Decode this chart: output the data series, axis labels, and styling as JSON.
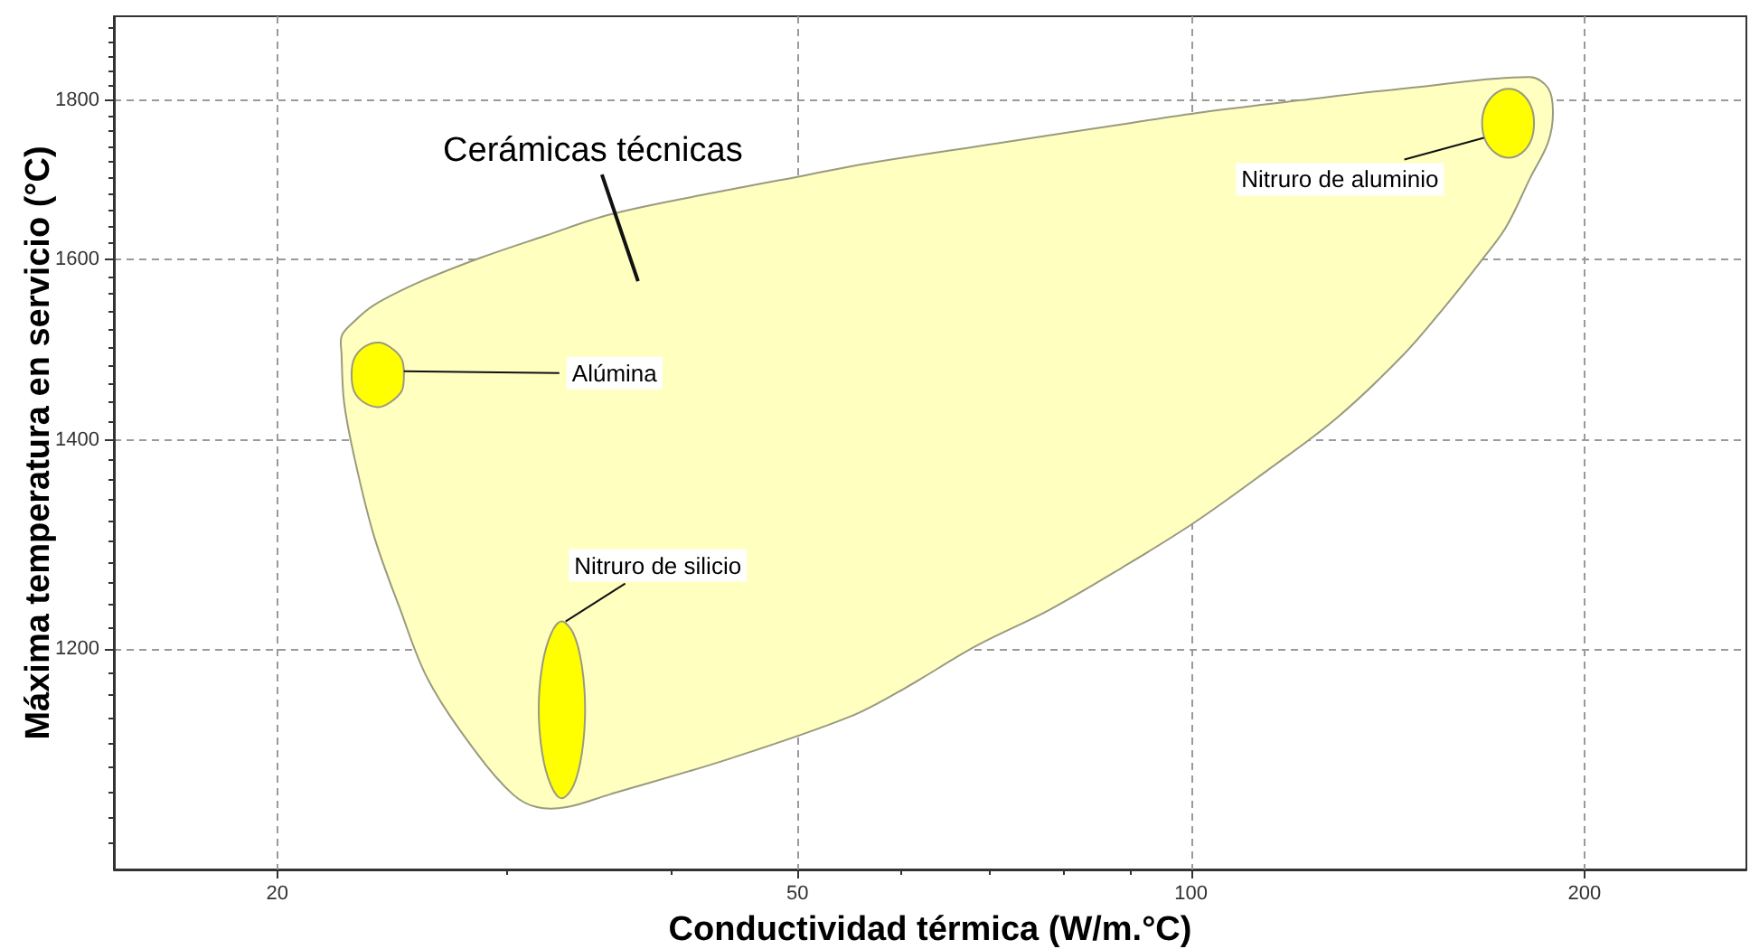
{
  "chart_data": {
    "type": "area",
    "xlabel": "Conductividad térmica (W/m.°C)",
    "ylabel": "Máxima temperatura en servicio (°C)",
    "log": "xy",
    "grid": true,
    "legend": false,
    "xlim": [
      15,
      266
    ],
    "ylim": [
      1020,
      1915
    ],
    "xticks": [
      20,
      {
        "value": 30,
        "label": null
      },
      {
        "value": 40,
        "label": null
      },
      50,
      {
        "value": 60,
        "label": null
      },
      {
        "value": 70,
        "label": null
      },
      {
        "value": 80,
        "label": null
      },
      {
        "value": 90,
        "label": null
      },
      100,
      200
    ],
    "yticks": [
      {
        "value": 1040,
        "label": null
      },
      {
        "value": 1060,
        "label": null
      },
      {
        "value": 1080,
        "label": null
      },
      {
        "value": 1100,
        "label": null
      },
      {
        "value": 1120,
        "label": null
      },
      {
        "value": 1140,
        "label": null
      },
      {
        "value": 1160,
        "label": null
      },
      {
        "value": 1180,
        "label": null
      },
      1200,
      {
        "value": 1220,
        "label": null
      },
      {
        "value": 1240,
        "label": null
      },
      {
        "value": 1260,
        "label": null
      },
      {
        "value": 1280,
        "label": null
      },
      {
        "value": 1300,
        "label": null
      },
      {
        "value": 1320,
        "label": null
      },
      {
        "value": 1340,
        "label": null
      },
      {
        "value": 1360,
        "label": null
      },
      {
        "value": 1380,
        "label": null
      },
      1400,
      {
        "value": 1420,
        "label": null
      },
      {
        "value": 1440,
        "label": null
      },
      {
        "value": 1460,
        "label": null
      },
      {
        "value": 1480,
        "label": null
      },
      {
        "value": 1500,
        "label": null
      },
      {
        "value": 1520,
        "label": null
      },
      {
        "value": 1540,
        "label": null
      },
      {
        "value": 1560,
        "label": null
      },
      {
        "value": 1580,
        "label": null
      },
      1600,
      {
        "value": 1620,
        "label": null
      },
      {
        "value": 1640,
        "label": null
      },
      {
        "value": 1660,
        "label": null
      },
      {
        "value": 1680,
        "label": null
      },
      {
        "value": 1700,
        "label": null
      },
      {
        "value": 1720,
        "label": null
      },
      {
        "value": 1740,
        "label": null
      },
      {
        "value": 1760,
        "label": null
      },
      {
        "value": 1780,
        "label": null
      },
      1800,
      {
        "value": 1820,
        "label": null
      },
      {
        "value": 1840,
        "label": null
      },
      {
        "value": 1860,
        "label": null
      },
      {
        "value": 1880,
        "label": null
      },
      {
        "value": 1900,
        "label": null
      }
    ],
    "series": [
      {
        "name": "Cerámicas técnicas",
        "color": "#ffffc0",
        "x": [
          22.4,
          22.4,
          22.8,
          23.7,
          25.8,
          28.7,
          32,
          35.9,
          42.5,
          50.4,
          56.6,
          70.8,
          88.4,
          102,
          121.5,
          150,
          181.7,
          187.6,
          189.2,
          187.6,
          181.7,
          174.2,
          167,
          156.7,
          145.5,
          129.4,
          114,
          100.4,
          88.4,
          77.8,
          68.5,
          60.4,
          54.9,
          44.4,
          35.9,
          33.3,
          31.6,
          30.3,
          28.4,
          26.1,
          24.8,
          23.7,
          22.9,
          22.5
        ],
        "values": [
          1492,
          1512,
          1526,
          1547,
          1575,
          1603,
          1628,
          1654,
          1679,
          1702,
          1718,
          1743,
          1768,
          1784,
          1800,
          1818,
          1831,
          1816,
          1784,
          1745,
          1699,
          1639,
          1600,
          1547,
          1492,
          1424,
          1368,
          1317,
          1274,
          1235,
          1203,
          1166,
          1142,
          1107,
          1078,
          1068,
          1068,
          1078,
          1112,
          1173,
          1238,
          1306,
          1384,
          1440
        ]
      },
      {
        "name": "Alúmina",
        "color": "#ffff00",
        "x": [
          25,
          24.9,
          24.4,
          23.9,
          23.3,
          22.9,
          22.8,
          22.9,
          23.3,
          23.9,
          24.4,
          24.9
        ],
        "values": [
          1470,
          1487,
          1500,
          1505,
          1500,
          1487,
          1470,
          1452,
          1440,
          1435,
          1440,
          1452
        ]
      },
      {
        "name": "Nitruro de silicio",
        "color": "#ffff00",
        "x": [
          34.4,
          34.2,
          33.7,
          33,
          32.4,
          31.9,
          31.7,
          31.9,
          32.4,
          33,
          33.7,
          34.2
        ],
        "values": [
          1148,
          1186,
          1214,
          1225,
          1214,
          1186,
          1148,
          1111,
          1085,
          1075,
          1085,
          1111
        ]
      },
      {
        "name": "Nitruro de aluminio",
        "color": "#ffff00",
        "x": [
          183,
          182,
          179,
          175,
          171,
          168,
          167,
          168,
          171,
          175,
          179,
          182
        ],
        "values": [
          1770,
          1792,
          1809,
          1815,
          1809,
          1792,
          1770,
          1747,
          1731,
          1725,
          1731,
          1747
        ]
      }
    ]
  }
}
